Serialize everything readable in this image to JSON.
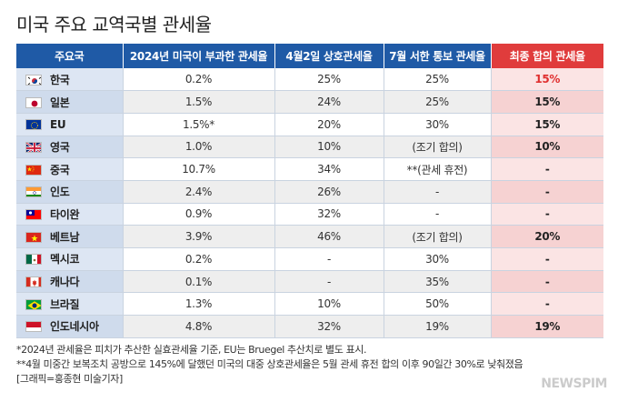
{
  "title": "미국 주요 교역국별 관세율",
  "headers": [
    "주요국",
    "2024년 미국이 부과한 관세율",
    "4월2일 상호관세율",
    "7월 서한 통보 관세율",
    "최종 합의 관세율"
  ],
  "rows": [
    {
      "flag": "kr-flag-icon",
      "country": "한국",
      "rate2024": "0.2%",
      "april": "25%",
      "july": "25%",
      "final": "15%",
      "final_red": true
    },
    {
      "flag": "jp-flag-icon",
      "country": "일본",
      "rate2024": "1.5%",
      "april": "24%",
      "july": "25%",
      "final": "15%",
      "final_red": false
    },
    {
      "flag": "eu-flag-icon",
      "country": "EU",
      "rate2024": "1.5%*",
      "april": "20%",
      "july": "30%",
      "final": "15%",
      "final_red": false
    },
    {
      "flag": "uk-flag-icon",
      "country": "영국",
      "rate2024": "1.0%",
      "april": "10%",
      "july": "(조기 합의)",
      "final": "10%",
      "final_red": false
    },
    {
      "flag": "cn-flag-icon",
      "country": "중국",
      "rate2024": "10.7%",
      "april": "34%",
      "july": "**(관세 휴전)",
      "final": "-",
      "final_red": false
    },
    {
      "flag": "in-flag-icon",
      "country": "인도",
      "rate2024": "2.4%",
      "april": "26%",
      "july": "-",
      "final": "-",
      "final_red": false
    },
    {
      "flag": "tw-flag-icon",
      "country": "타이완",
      "rate2024": "0.9%",
      "april": "32%",
      "july": "-",
      "final": "-",
      "final_red": false
    },
    {
      "flag": "vn-flag-icon",
      "country": "베트남",
      "rate2024": "3.9%",
      "april": "46%",
      "july": "(조기 합의)",
      "final": "20%",
      "final_red": false
    },
    {
      "flag": "mx-flag-icon",
      "country": "멕시코",
      "rate2024": "0.2%",
      "april": "-",
      "july": "30%",
      "final": "-",
      "final_red": false
    },
    {
      "flag": "ca-flag-icon",
      "country": "캐나다",
      "rate2024": "0.1%",
      "april": "-",
      "july": "35%",
      "final": "-",
      "final_red": false
    },
    {
      "flag": "br-flag-icon",
      "country": "브라질",
      "rate2024": "1.3%",
      "april": "10%",
      "july": "50%",
      "final": "-",
      "final_red": false
    },
    {
      "flag": "id-flag-icon",
      "country": "인도네시아",
      "rate2024": "4.8%",
      "april": "32%",
      "july": "19%",
      "final": "19%",
      "final_red": false
    }
  ],
  "footnotes": [
    "*2024년 관세율은 피치가 추산한 실효관세율 기준, EU는 Bruegel 추산치로 별도 표시.",
    "**4월 미중간 보복조치 공방으로 145%에 달했던 미국의 대중 상호관세율은 5월 관세 휴전 합의 이후 90일간 30%로 낮춰졌음",
    "[그래픽=홍종현 미술기자]"
  ],
  "watermark": "NEWSPIM",
  "colors": {
    "header_blue": "#1f5aa6",
    "header_red": "#e03c3c",
    "final_red_text": "#e03030"
  }
}
